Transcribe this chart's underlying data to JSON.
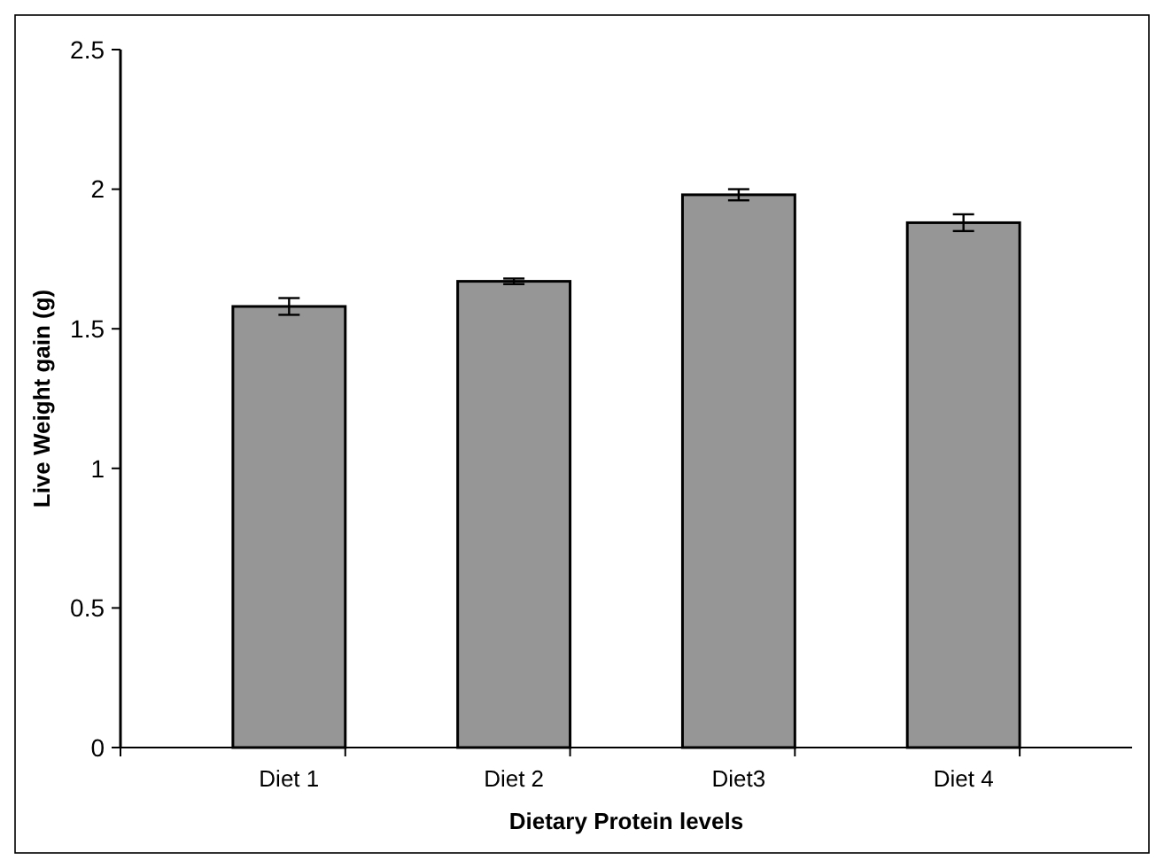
{
  "chart_data": {
    "type": "bar",
    "xlabel": "Dietary Protein levels",
    "ylabel": "Live Weight gain (g)",
    "categories": [
      "Diet 1",
      "Diet 2",
      "Diet3",
      "Diet 4"
    ],
    "values": [
      1.58,
      1.67,
      1.98,
      1.88
    ],
    "errors": [
      0.03,
      0.01,
      0.02,
      0.03
    ],
    "color": "#969696",
    "ylim": [
      0,
      2.5
    ],
    "yticks": [
      0,
      0.5,
      1,
      1.5,
      2,
      2.5
    ],
    "grid": false
  }
}
